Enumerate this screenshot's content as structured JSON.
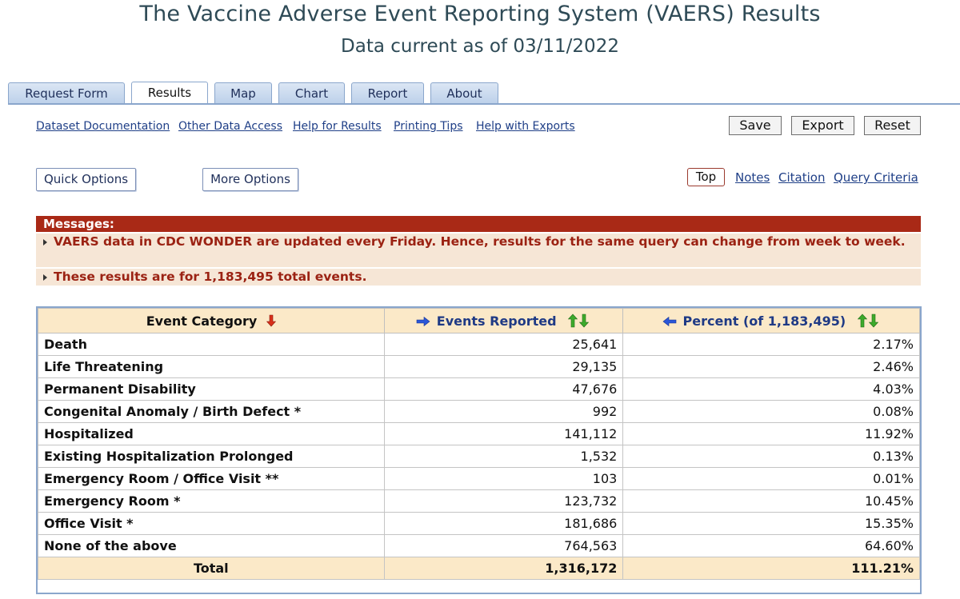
{
  "header": {
    "title": "The Vaccine Adverse Event Reporting System (VAERS) Results",
    "subtitle": "Data current as of 03/11/2022"
  },
  "tabs": [
    {
      "label": "Request Form",
      "active": false
    },
    {
      "label": "Results",
      "active": true
    },
    {
      "label": "Map",
      "active": false
    },
    {
      "label": "Chart",
      "active": false
    },
    {
      "label": "Report",
      "active": false
    },
    {
      "label": "About",
      "active": false
    }
  ],
  "links": {
    "dataset_doc": "Dataset Documentation",
    "other_access": "Other Data Access",
    "help_results": "Help for Results",
    "printing_tips": "Printing Tips",
    "help_exports": "Help with Exports"
  },
  "actions": {
    "save": "Save",
    "export": "Export",
    "reset": "Reset"
  },
  "options": {
    "quick": "Quick Options",
    "more": "More Options"
  },
  "toplinks": {
    "top": "Top",
    "notes": "Notes",
    "citation": "Citation",
    "query_criteria": "Query Criteria"
  },
  "messages": {
    "heading": "Messages:",
    "items": [
      "VAERS data in CDC WONDER are updated every Friday. Hence, results for the same query can change from week to week.",
      "These results are for 1,183,495 total events."
    ]
  },
  "table": {
    "headers": {
      "category": "Event Category",
      "events": "Events Reported",
      "percent": "Percent (of 1,183,495)"
    },
    "rows": [
      {
        "category": "Death",
        "events": "25,641",
        "percent": "2.17%"
      },
      {
        "category": "Life Threatening",
        "events": "29,135",
        "percent": "2.46%"
      },
      {
        "category": "Permanent Disability",
        "events": "47,676",
        "percent": "4.03%"
      },
      {
        "category": "Congenital Anomaly / Birth Defect *",
        "events": "992",
        "percent": "0.08%"
      },
      {
        "category": "Hospitalized",
        "events": "141,112",
        "percent": "11.92%"
      },
      {
        "category": "Existing Hospitalization Prolonged",
        "events": "1,532",
        "percent": "0.13%"
      },
      {
        "category": "Emergency Room / Office Visit **",
        "events": "103",
        "percent": "0.01%"
      },
      {
        "category": "Emergency Room *",
        "events": "123,732",
        "percent": "10.45%"
      },
      {
        "category": "Office Visit *",
        "events": "181,686",
        "percent": "15.35%"
      },
      {
        "category": "None of the above",
        "events": "764,563",
        "percent": "64.60%"
      }
    ],
    "total": {
      "category": "Total",
      "events": "1,316,172",
      "percent": "111.21%"
    }
  },
  "colors": {
    "accent": "#a92916",
    "link": "#1f3f87",
    "tab_border": "#8aa6cc",
    "header_bg": "#fbe9c8",
    "message_bg": "#f6e6d6"
  }
}
